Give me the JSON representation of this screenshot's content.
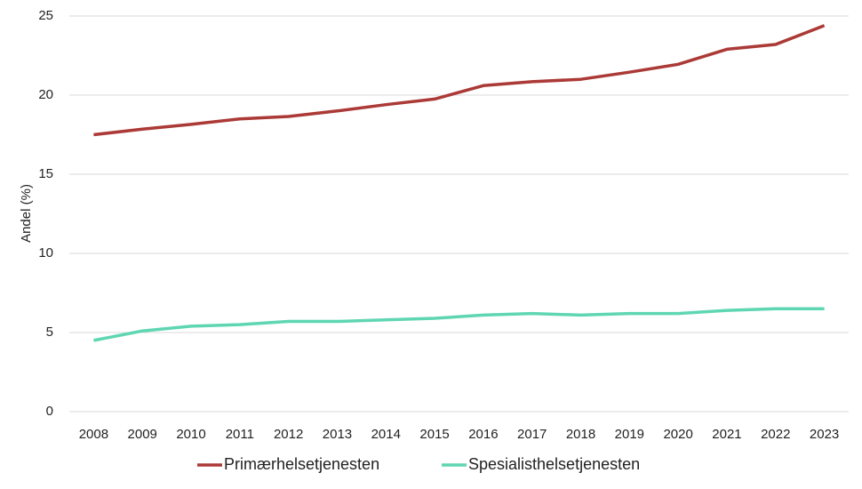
{
  "chart_data": {
    "type": "line",
    "y_label": "Andel (%)",
    "categories": [
      "2008",
      "2009",
      "2010",
      "2011",
      "2012",
      "2013",
      "2014",
      "2015",
      "2016",
      "2017",
      "2018",
      "2019",
      "2020",
      "2021",
      "2022",
      "2023"
    ],
    "series": [
      {
        "name": "Primærhelsetjenesten",
        "color": "#ab3a37",
        "values": [
          17.5,
          17.85,
          18.15,
          18.5,
          18.65,
          19.0,
          19.4,
          19.75,
          20.6,
          20.85,
          21.0,
          21.45,
          21.95,
          22.9,
          23.2,
          24.4
        ]
      },
      {
        "name": "Spesialisthelsetjenesten",
        "color": "#5fd6b2",
        "values": [
          4.5,
          5.1,
          5.4,
          5.5,
          5.7,
          5.7,
          5.8,
          5.9,
          6.1,
          6.2,
          6.1,
          6.2,
          6.2,
          6.4,
          6.5,
          6.5
        ]
      }
    ],
    "ylim": [
      0,
      25
    ],
    "yticks": [
      0,
      5,
      10,
      15,
      20,
      25
    ],
    "grid": true,
    "legend": "bottom"
  }
}
